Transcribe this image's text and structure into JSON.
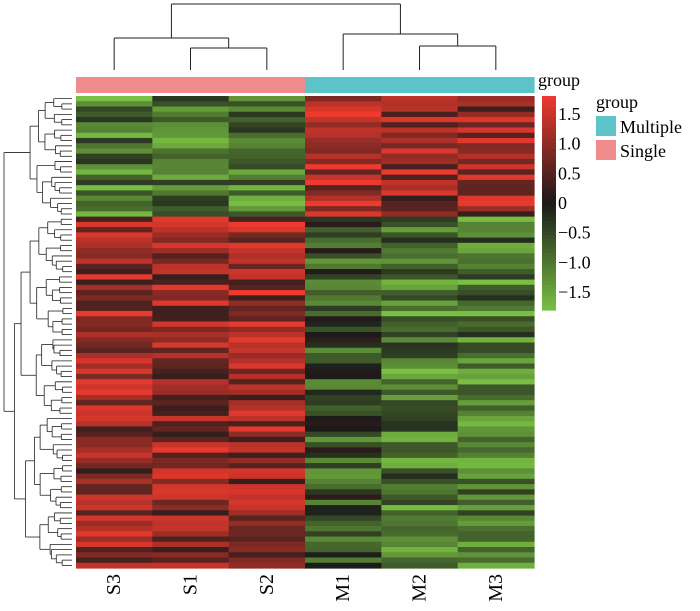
{
  "chart_data": {
    "type": "heatmap",
    "columns": [
      "S3",
      "S1",
      "S2",
      "M1",
      "M2",
      "M3"
    ],
    "column_groups": [
      "Single",
      "Single",
      "Single",
      "Multiple",
      "Multiple",
      "Multiple"
    ],
    "group_annotation_label": "group",
    "legend": {
      "title": "group",
      "entries": [
        {
          "label": "Multiple",
          "color": "#5cc4c8"
        },
        {
          "label": "Single",
          "color": "#f08c8c"
        }
      ]
    },
    "colorbar": {
      "range": [
        -1.8,
        1.8
      ],
      "ticks": [
        1.5,
        1.0,
        0.5,
        0,
        -0.5,
        -1.0,
        -1.5
      ],
      "tick_labels": [
        "1.5",
        "1.0",
        "0.5",
        "0",
        "−0.5",
        "−1.0",
        "−1.5"
      ],
      "colors": {
        "high": "#ee3a2e",
        "mid": "#1a1a1a",
        "low": "#79c043"
      }
    },
    "n_rows": 90,
    "row_pattern_blocks": [
      {
        "rows": 23,
        "S": -1.0,
        "M": 1.0,
        "M1": 1.3
      },
      {
        "rows": 67,
        "S": 1.0,
        "M": -1.0,
        "M1": -0.6
      }
    ]
  }
}
